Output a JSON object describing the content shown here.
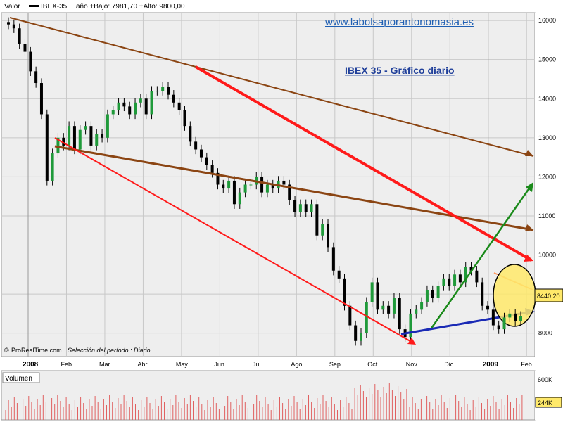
{
  "header": {
    "valor_label": "Valor",
    "symbol": "IBEX-35",
    "stats": "año +Bajo: 7981,70 +Alto: 9800,00"
  },
  "watermark": {
    "site": "www.labolsaporantonomasia.es"
  },
  "credit": {
    "source": "ProRealTime.com",
    "period": "Selección del período : Diario"
  },
  "volume_panel": {
    "label": "Volumen",
    "max_label": "600K",
    "last_label": "244K"
  },
  "colors": {
    "up_candle": "#1f9a3a",
    "down_candle": "#000000",
    "trend_red": "#ff1a1a",
    "trend_brown": "#8b4513",
    "trend_green": "#1a8a1a",
    "trend_blue": "#1a2ab5",
    "highlight_fill": "#ffe96a",
    "price_box": "#ffe96a",
    "volume_bar": "#e06060",
    "grid": "#c8c8c8",
    "background": "#eeeeee"
  },
  "chart_data": {
    "type": "candlestick",
    "title": "IBEX 35 - Gráfico diario",
    "x_labels": [
      "2008",
      "Feb",
      "Mar",
      "Abr",
      "May",
      "Jun",
      "Jul",
      "Ago",
      "Sep",
      "Oct",
      "Nov",
      "Dic",
      "2009",
      "Feb"
    ],
    "y_ticks": [
      8000,
      9000,
      10000,
      11000,
      12000,
      13000,
      14000,
      15000,
      16000
    ],
    "y_range": [
      7400,
      16200
    ],
    "last_price_label": "8440,20",
    "series": [
      {
        "values": [
          15900,
          15800,
          15400,
          15200,
          14700,
          14400,
          13600,
          11900,
          12600,
          13000,
          12800,
          13300,
          12700,
          13200,
          13300,
          12800,
          13100,
          13000,
          13600,
          13700,
          13900,
          13800,
          13600,
          13900,
          14000,
          13600,
          14200,
          14200,
          14300,
          14100,
          13900,
          13700,
          13300,
          12900,
          12700,
          12500,
          12300,
          12100,
          11800,
          11700,
          11900,
          11300,
          11600,
          11800,
          11800,
          12000,
          11600,
          11800,
          11700,
          11900,
          11800,
          11400,
          11100,
          11300,
          11100,
          11300,
          10500,
          10800,
          10200,
          9600,
          9400,
          8700,
          8200,
          7800,
          8000,
          8800,
          9300,
          8600,
          8700,
          8500,
          8900,
          8100,
          7900,
          8500,
          8600,
          8800,
          9100,
          8900,
          9200,
          9400,
          9200,
          9500,
          9300,
          9700,
          9600,
          9300,
          8700,
          8600,
          8200,
          8100,
          8400,
          8500,
          8300,
          8440
        ]
      }
    ],
    "volume": {
      "y_ticks_label": [
        "600K",
        "244K"
      ]
    },
    "annotations": [
      "red downtrend lines",
      "brown channel lines",
      "green breakout arrow",
      "blue support arrow",
      "yellow highlight ellipse"
    ]
  }
}
